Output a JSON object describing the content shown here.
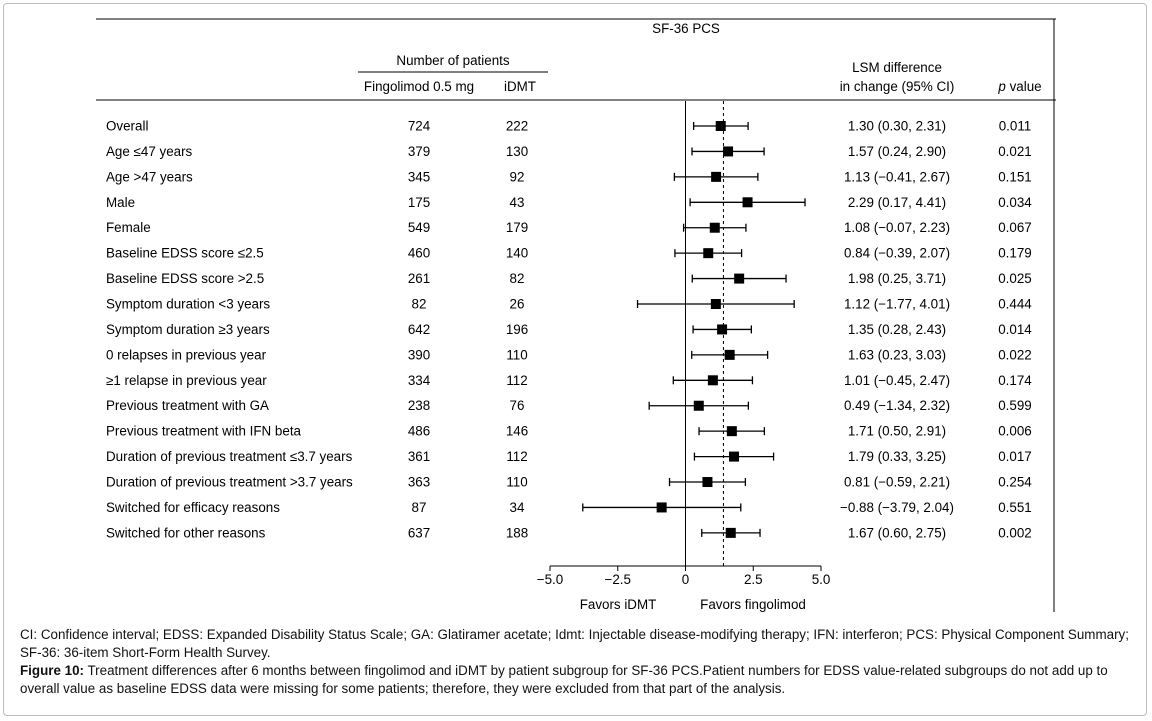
{
  "chart_data": {
    "type": "forest",
    "title": "SF-36 PCS",
    "headers": {
      "patients_group": "Number of patients",
      "fingolimod": "Fingolimod 0.5 mg",
      "idmt": "iDMT",
      "lsm_line1": "LSM difference",
      "lsm_line2": "in change (95% CI)",
      "p_italic": "p",
      "p_rest": " value"
    },
    "xlim": [
      -5.0,
      5.0
    ],
    "xticks": [
      "−5.0",
      "−2.5",
      "0",
      "2.5",
      "5.0"
    ],
    "xtick_values": [
      -5.0,
      -2.5,
      0,
      2.5,
      5.0
    ],
    "reference_line_solid": 0,
    "reference_line_dashed": 1.4,
    "favors_left": "Favors iDMT",
    "favors_right": "Favors fingolimod",
    "rows": [
      {
        "label": "Overall",
        "fingolimod": "724",
        "idmt": "222",
        "est": 1.3,
        "lo": 0.3,
        "hi": 2.31,
        "ci_text": "1.30 (0.30, 2.31)",
        "p": "0.011"
      },
      {
        "label": "Age ≤47 years",
        "fingolimod": "379",
        "idmt": "130",
        "est": 1.57,
        "lo": 0.24,
        "hi": 2.9,
        "ci_text": "1.57 (0.24, 2.90)",
        "p": "0.021"
      },
      {
        "label": "Age >47 years",
        "fingolimod": "345",
        "idmt": "92",
        "est": 1.13,
        "lo": -0.41,
        "hi": 2.67,
        "ci_text": "1.13 (−0.41, 2.67)",
        "p": "0.151"
      },
      {
        "label": "Male",
        "fingolimod": "175",
        "idmt": "43",
        "est": 2.29,
        "lo": 0.17,
        "hi": 4.41,
        "ci_text": "2.29 (0.17, 4.41)",
        "p": "0.034"
      },
      {
        "label": "Female",
        "fingolimod": "549",
        "idmt": "179",
        "est": 1.08,
        "lo": -0.07,
        "hi": 2.23,
        "ci_text": "1.08 (−0.07, 2.23)",
        "p": "0.067"
      },
      {
        "label": "Baseline EDSS score ≤2.5",
        "fingolimod": "460",
        "idmt": "140",
        "est": 0.84,
        "lo": -0.39,
        "hi": 2.07,
        "ci_text": "0.84 (−0.39, 2.07)",
        "p": "0.179"
      },
      {
        "label": "Baseline EDSS score >2.5",
        "fingolimod": "261",
        "idmt": "82",
        "est": 1.98,
        "lo": 0.25,
        "hi": 3.71,
        "ci_text": "1.98 (0.25, 3.71)",
        "p": "0.025"
      },
      {
        "label": "Symptom duration <3 years",
        "fingolimod": "82",
        "idmt": "26",
        "est": 1.12,
        "lo": -1.77,
        "hi": 4.01,
        "ci_text": "1.12 (−1.77, 4.01)",
        "p": "0.444"
      },
      {
        "label": "Symptom duration ≥3 years",
        "fingolimod": "642",
        "idmt": "196",
        "est": 1.35,
        "lo": 0.28,
        "hi": 2.43,
        "ci_text": "1.35 (0.28, 2.43)",
        "p": "0.014"
      },
      {
        "label": "0 relapses in previous year",
        "fingolimod": "390",
        "idmt": "110",
        "est": 1.63,
        "lo": 0.23,
        "hi": 3.03,
        "ci_text": "1.63 (0.23, 3.03)",
        "p": "0.022"
      },
      {
        "label": "≥1 relapse in previous year",
        "fingolimod": "334",
        "idmt": "112",
        "est": 1.01,
        "lo": -0.45,
        "hi": 2.47,
        "ci_text": "1.01 (−0.45, 2.47)",
        "p": "0.174"
      },
      {
        "label": "Previous treatment with GA",
        "fingolimod": "238",
        "idmt": "76",
        "est": 0.49,
        "lo": -1.34,
        "hi": 2.32,
        "ci_text": "0.49 (−1.34, 2.32)",
        "p": "0.599"
      },
      {
        "label": "Previous treatment with IFN beta",
        "fingolimod": "486",
        "idmt": "146",
        "est": 1.71,
        "lo": 0.5,
        "hi": 2.91,
        "ci_text": "1.71 (0.50, 2.91)",
        "p": "0.006"
      },
      {
        "label": "Duration of previous treatment ≤3.7 years",
        "fingolimod": "361",
        "idmt": "112",
        "est": 1.79,
        "lo": 0.33,
        "hi": 3.25,
        "ci_text": "1.79 (0.33, 3.25)",
        "p": "0.017"
      },
      {
        "label": "Duration of previous treatment >3.7 years",
        "fingolimod": "363",
        "idmt": "110",
        "est": 0.81,
        "lo": -0.59,
        "hi": 2.21,
        "ci_text": "0.81 (−0.59, 2.21)",
        "p": "0.254"
      },
      {
        "label": "Switched for efficacy reasons",
        "fingolimod": "87",
        "idmt": "34",
        "est": -0.88,
        "lo": -3.79,
        "hi": 2.04,
        "ci_text": "−0.88 (−3.79, 2.04)",
        "p": "0.551"
      },
      {
        "label": "Switched for other reasons",
        "fingolimod": "637",
        "idmt": "188",
        "est": 1.67,
        "lo": 0.6,
        "hi": 2.75,
        "ci_text": "1.67 (0.60, 2.75)",
        "p": "0.002"
      }
    ]
  },
  "caption": {
    "abbreviations": "CI: Confidence interval; EDSS: Expanded Disability Status Scale; GA: Glatiramer acetate; Idmt: Injectable disease-modifying therapy; IFN: interferon; PCS: Physical Component Summary; SF-36: 36-item Short-Form Health Survey.",
    "figure_label": "Figure 10:",
    "figure_text": " Treatment differences after 6 months between fingolimod and iDMT by patient subgroup for SF-36 PCS.Patient numbers for EDSS value-related subgroups do not add up to overall value as baseline EDSS data were missing for some patients; therefore, they were excluded from that part of the analysis."
  }
}
